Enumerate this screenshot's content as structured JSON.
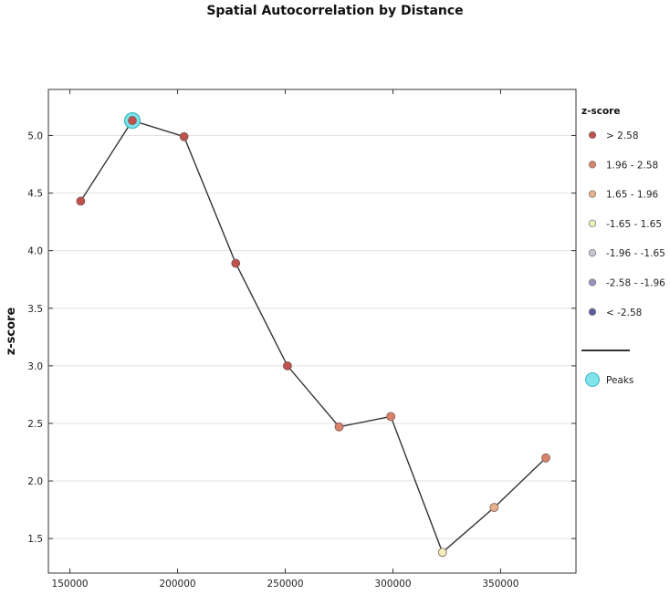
{
  "chart_data": {
    "type": "line",
    "title": "Spatial Autocorrelation by Distance",
    "xlabel": "",
    "ylabel": "z-score",
    "xlim": [
      140000,
      385000
    ],
    "ylim": [
      1.2,
      5.4
    ],
    "x_ticks": [
      150000,
      200000,
      250000,
      300000,
      350000
    ],
    "x_tick_labels": [
      "150000",
      "200000",
      "250000",
      "300000",
      "350000"
    ],
    "y_ticks": [
      1.5,
      2.0,
      2.5,
      3.0,
      3.5,
      4.0,
      4.5,
      5.0
    ],
    "y_tick_labels": [
      "1.5",
      "2.0",
      "2.5",
      "3.0",
      "3.5",
      "4.0",
      "4.5",
      "5.0"
    ],
    "grid": "horizontal",
    "legend": {
      "title": "z-score",
      "placement": "right",
      "entries": [
        {
          "label": "> 2.58",
          "color": "#c0504d"
        },
        {
          "label": "1.96 - 2.58",
          "color": "#d9836a"
        },
        {
          "label": "1.65 - 1.96",
          "color": "#e6b08a"
        },
        {
          "label": "-1.65 - 1.65",
          "color": "#eeeebb"
        },
        {
          "label": "-1.96 - -1.65",
          "color": "#c9c3d6"
        },
        {
          "label": "-2.58 - -1.96",
          "color": "#9a90bf"
        },
        {
          "label": "< -2.58",
          "color": "#5b5e9a"
        }
      ],
      "line_entry_color": "#333333",
      "peaks_label": "Peaks",
      "peaks_color": "#7fe3ea"
    },
    "series": [
      {
        "points": [
          {
            "x": 155000,
            "y": 4.43,
            "color": "#c0504d"
          },
          {
            "x": 179000,
            "y": 5.13,
            "color": "#c0504d",
            "peak": true
          },
          {
            "x": 203000,
            "y": 4.99,
            "color": "#c0504d"
          },
          {
            "x": 227000,
            "y": 3.89,
            "color": "#c0504d"
          },
          {
            "x": 251000,
            "y": 3.0,
            "color": "#c0504d"
          },
          {
            "x": 275000,
            "y": 2.47,
            "color": "#d9836a"
          },
          {
            "x": 299000,
            "y": 2.56,
            "color": "#d9836a"
          },
          {
            "x": 323000,
            "y": 1.38,
            "color": "#eeeebb"
          },
          {
            "x": 347000,
            "y": 1.77,
            "color": "#e6b08a"
          },
          {
            "x": 371000,
            "y": 2.2,
            "color": "#d9836a"
          }
        ]
      }
    ]
  }
}
